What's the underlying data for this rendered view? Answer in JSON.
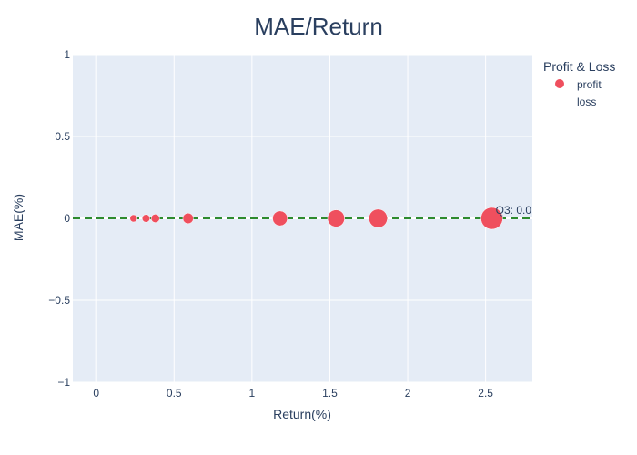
{
  "chart_data": {
    "type": "scatter",
    "title": "MAE/Return",
    "xlabel": "Return(%)",
    "ylabel": "MAE(%)",
    "xlim": [
      -0.15,
      2.8
    ],
    "ylim": [
      -1,
      1
    ],
    "x_ticks": [
      0,
      0.5,
      1,
      1.5,
      2,
      2.5
    ],
    "x_tick_labels": [
      "0",
      "0.5",
      "1",
      "1.5",
      "2",
      "2.5"
    ],
    "y_ticks": [
      -1,
      -0.5,
      0,
      0.5,
      1
    ],
    "y_tick_labels": [
      "−1",
      "−0.5",
      "0",
      "0.5",
      "1"
    ],
    "grid": true,
    "legend": {
      "title": "Profit & Loss",
      "placement": "top-right",
      "items": [
        {
          "label": "profit",
          "color": "#ef4f5e",
          "marker": "circle"
        },
        {
          "label": "loss",
          "color": null,
          "marker": "none"
        }
      ]
    },
    "series": [
      {
        "name": "profit",
        "color": "#ef4f5e",
        "points": [
          {
            "x": 0.24,
            "y": 0,
            "size": 0.24
          },
          {
            "x": 0.32,
            "y": 0,
            "size": 0.32
          },
          {
            "x": 0.38,
            "y": 0,
            "size": 0.38
          },
          {
            "x": 0.59,
            "y": 0,
            "size": 0.59
          },
          {
            "x": 1.18,
            "y": 0,
            "size": 1.18
          },
          {
            "x": 1.54,
            "y": 0,
            "size": 1.54
          },
          {
            "x": 1.81,
            "y": 0,
            "size": 1.81
          },
          {
            "x": 2.54,
            "y": 0,
            "size": 2.54
          }
        ]
      },
      {
        "name": "loss",
        "color": null,
        "points": []
      }
    ],
    "reference_line": {
      "y": 0,
      "style": "dashed",
      "color": "#2e8b2e",
      "label": "Q3: 0.0"
    }
  },
  "colors": {
    "plot_background": "#e5ecf6",
    "grid": "#ffffff",
    "text": "#2a3f5f",
    "marker": "#ef4f5e",
    "reference_line": "#2e8b2e"
  }
}
